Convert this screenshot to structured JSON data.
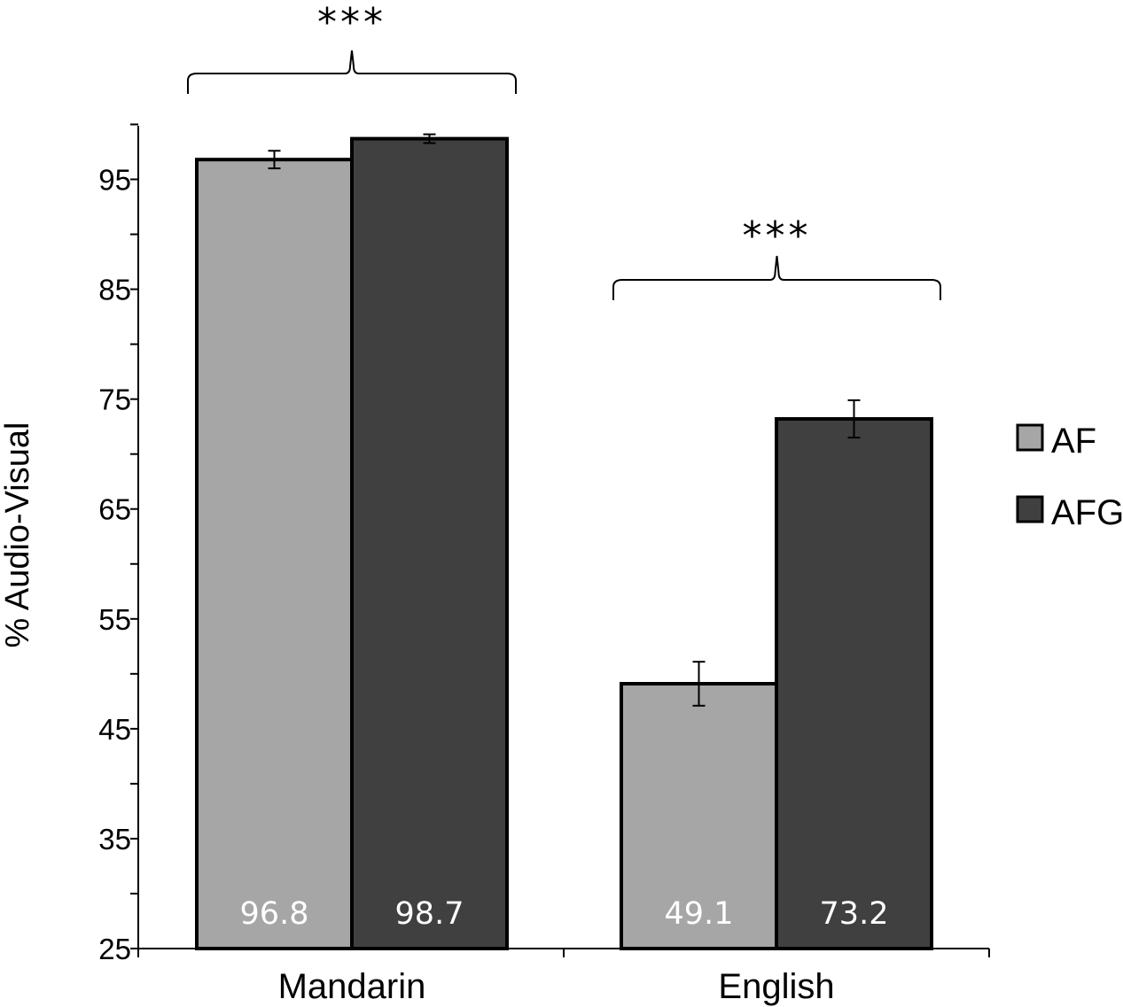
{
  "chart_data": {
    "type": "bar",
    "categories": [
      "Mandarin",
      "English"
    ],
    "series": [
      {
        "name": "AF",
        "values": [
          96.8,
          49.1
        ],
        "errors": [
          0.8,
          2.0
        ],
        "color": "#a6a6a6"
      },
      {
        "name": "AFG",
        "values": [
          98.7,
          73.2
        ],
        "errors": [
          0.4,
          1.7
        ],
        "color": "#404040"
      }
    ],
    "data_labels": [
      [
        "96.8",
        "49.1"
      ],
      [
        "98.7",
        "73.2"
      ]
    ],
    "ylabel": "% Audio-Visual",
    "xlabel": "",
    "title": "",
    "ylim": [
      25,
      100
    ],
    "yticks": [
      25,
      35,
      45,
      55,
      65,
      75,
      85,
      95
    ],
    "minor_tick_step": 5,
    "significance": [
      "***",
      "***"
    ],
    "legend_position": "right",
    "grid": false
  }
}
